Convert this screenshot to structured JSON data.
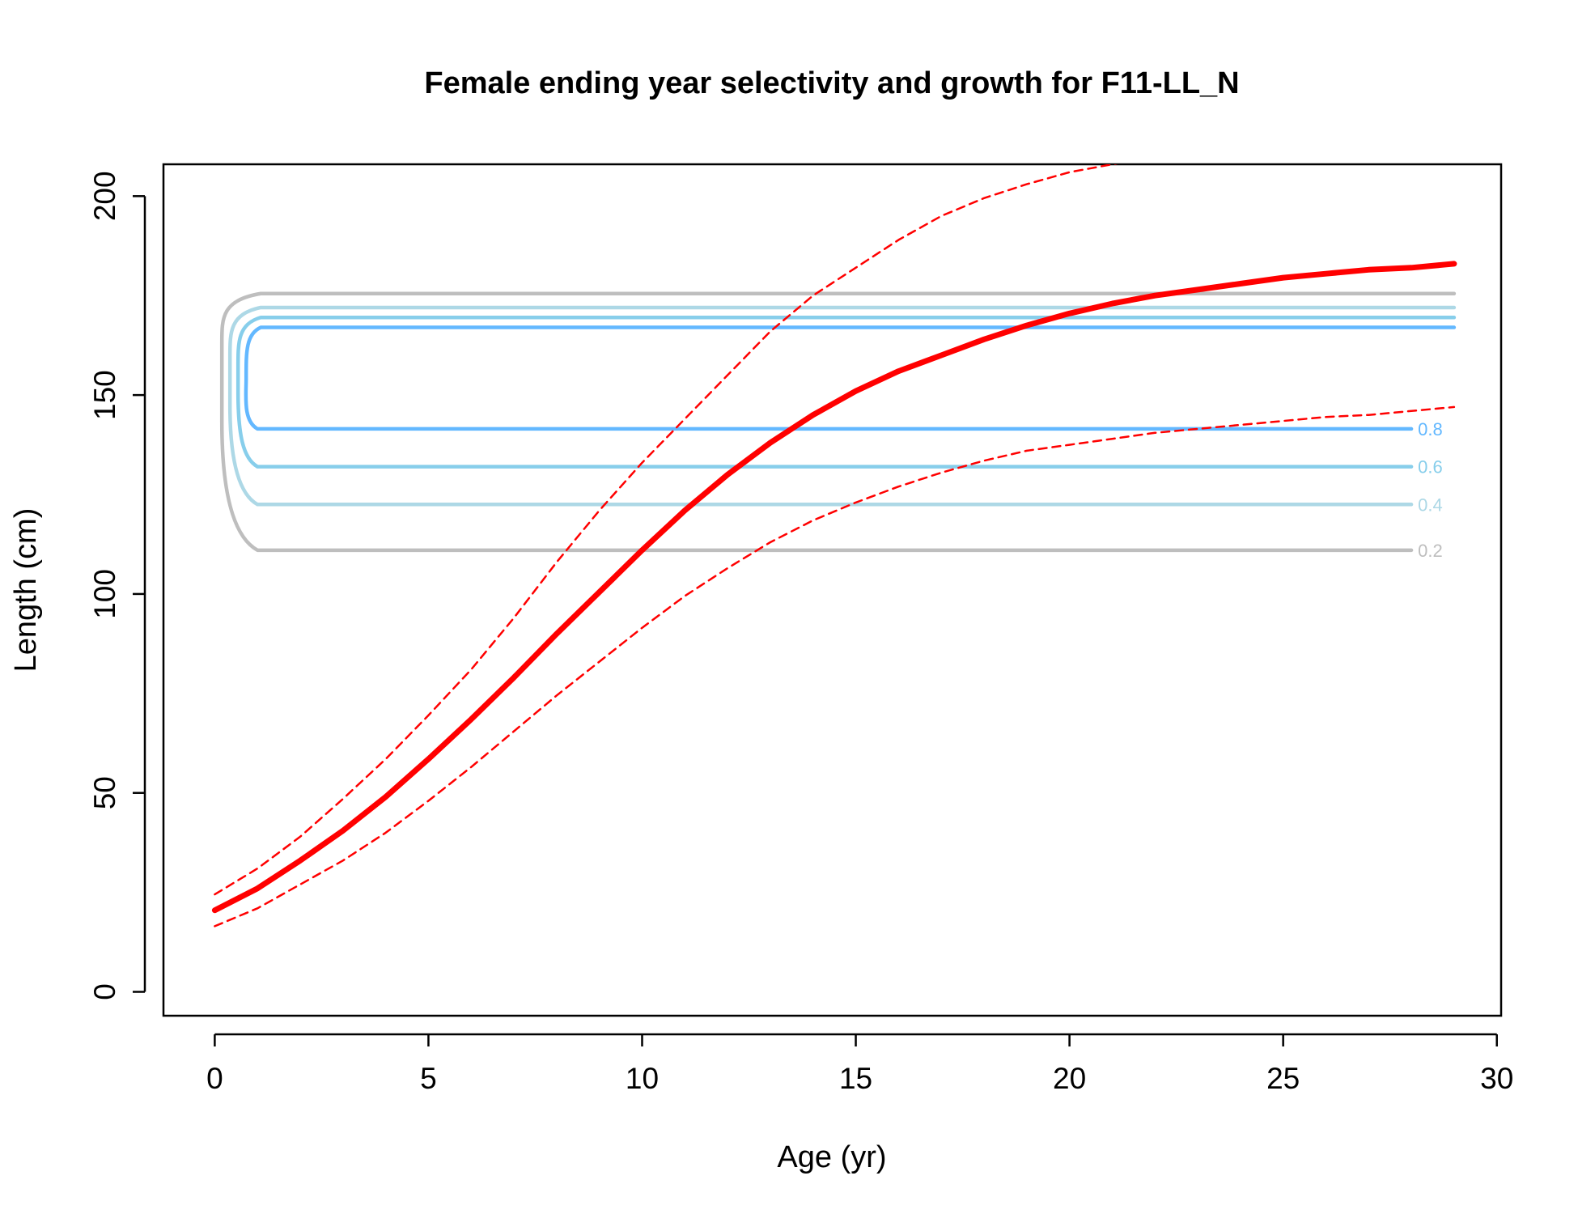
{
  "chart_data": {
    "type": "line",
    "title": "Female ending year selectivity and growth for F11-LL_N",
    "xlabel": "Age (yr)",
    "ylabel": "Length (cm)",
    "xlim": [
      -1.2,
      30.1
    ],
    "ylim": [
      -6,
      208
    ],
    "x_ticks": [
      0,
      5,
      10,
      15,
      20,
      25,
      30
    ],
    "y_ticks": [
      0,
      50,
      100,
      150,
      200
    ],
    "colors": {
      "growth": "#ff0000",
      "c02": "#bebebe",
      "c04": "#add8e6",
      "c06": "#87ceeb",
      "c08": "#63b8ff"
    },
    "series": [
      {
        "role": "mean",
        "x": [
          0,
          1,
          2,
          3,
          4,
          5,
          6,
          7,
          8,
          9,
          10,
          11,
          12,
          13,
          14,
          15,
          16,
          17,
          18,
          19,
          20,
          21,
          22,
          23,
          24,
          25,
          26,
          27,
          28,
          29
        ],
        "values": [
          20.5,
          26,
          33,
          40.5,
          49,
          58.5,
          68.5,
          79,
          90,
          100.5,
          111,
          121,
          130,
          138,
          145,
          151,
          156,
          160,
          164,
          167.5,
          170.5,
          173,
          175,
          176.5,
          178,
          179.5,
          180.5,
          181.5,
          182,
          183
        ]
      },
      {
        "role": "upper",
        "x": [
          0,
          1,
          2,
          3,
          4,
          5,
          6,
          7,
          8,
          9,
          10,
          11,
          12,
          13,
          14,
          15,
          16,
          17,
          18,
          19,
          20,
          21,
          22
        ],
        "values": [
          24.5,
          31,
          39,
          48.5,
          58.5,
          69.5,
          81,
          94,
          108,
          121,
          133,
          144,
          155,
          166,
          175,
          182,
          189,
          195,
          199.5,
          203,
          206,
          208,
          210
        ]
      },
      {
        "role": "lower",
        "x": [
          0,
          1,
          2,
          3,
          4,
          5,
          6,
          7,
          8,
          9,
          10,
          11,
          12,
          13,
          14,
          15,
          16,
          17,
          18,
          19,
          20,
          21,
          22,
          23,
          24,
          25,
          26,
          27,
          28,
          29
        ],
        "values": [
          16.5,
          21,
          27,
          33,
          40,
          48,
          56.5,
          65.5,
          74.5,
          83,
          91.5,
          99.5,
          106.5,
          113,
          118.5,
          123,
          127,
          130.5,
          133.5,
          136,
          137.5,
          139,
          140.5,
          141.5,
          142.5,
          143.5,
          144.5,
          145,
          146,
          147
        ]
      }
    ],
    "contours": [
      {
        "level": "0.2",
        "color_key": "c02",
        "low": 111,
        "high": 175.5,
        "label": "0.2"
      },
      {
        "level": "0.4",
        "color_key": "c04",
        "low": 122.5,
        "high": 172,
        "label": "0.4"
      },
      {
        "level": "0.6",
        "color_key": "c06",
        "low": 132,
        "high": 169.5,
        "label": "0.6"
      },
      {
        "level": "0.8",
        "color_key": "c08",
        "low": 141.5,
        "high": 167,
        "label": "0.8"
      }
    ],
    "contour_x_start": 1,
    "contour_x_end_upper": 29,
    "contour_x_end_lower": 28,
    "grid": false,
    "legend": "none"
  }
}
